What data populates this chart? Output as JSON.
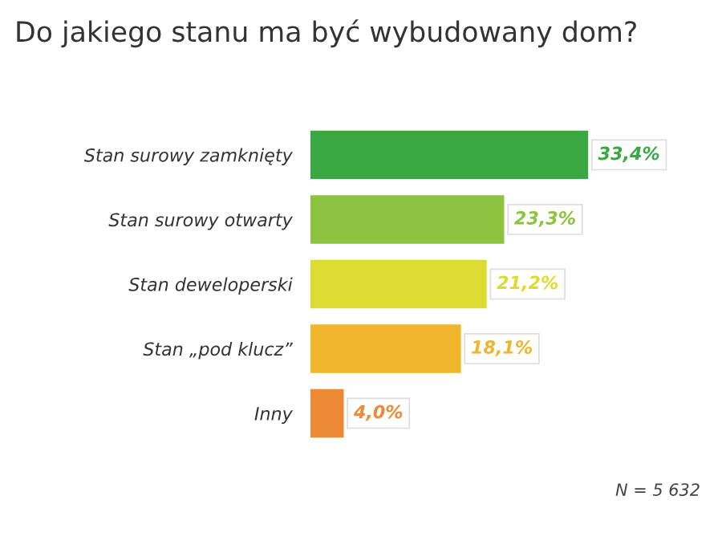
{
  "chart_data": {
    "type": "bar",
    "orientation": "horizontal",
    "title": "Do jakiego stanu ma być wybudowany dom?",
    "categories": [
      "Stan surowy zamknięty",
      "Stan surowy otwarty",
      "Stan deweloperski",
      "Stan „pod klucz”",
      "Inny"
    ],
    "values": [
      33.4,
      23.3,
      21.2,
      18.1,
      4.0
    ],
    "colors": [
      "#3aa841",
      "#8cc43f",
      "#dbdc2f",
      "#f0b52a",
      "#ee8a35"
    ],
    "value_labels": [
      "33,4%",
      "23,3%",
      "21,2%",
      "18,1%",
      "4,0%"
    ],
    "annotations": [
      "N = 5 632"
    ],
    "grid": false,
    "legend": false
  }
}
